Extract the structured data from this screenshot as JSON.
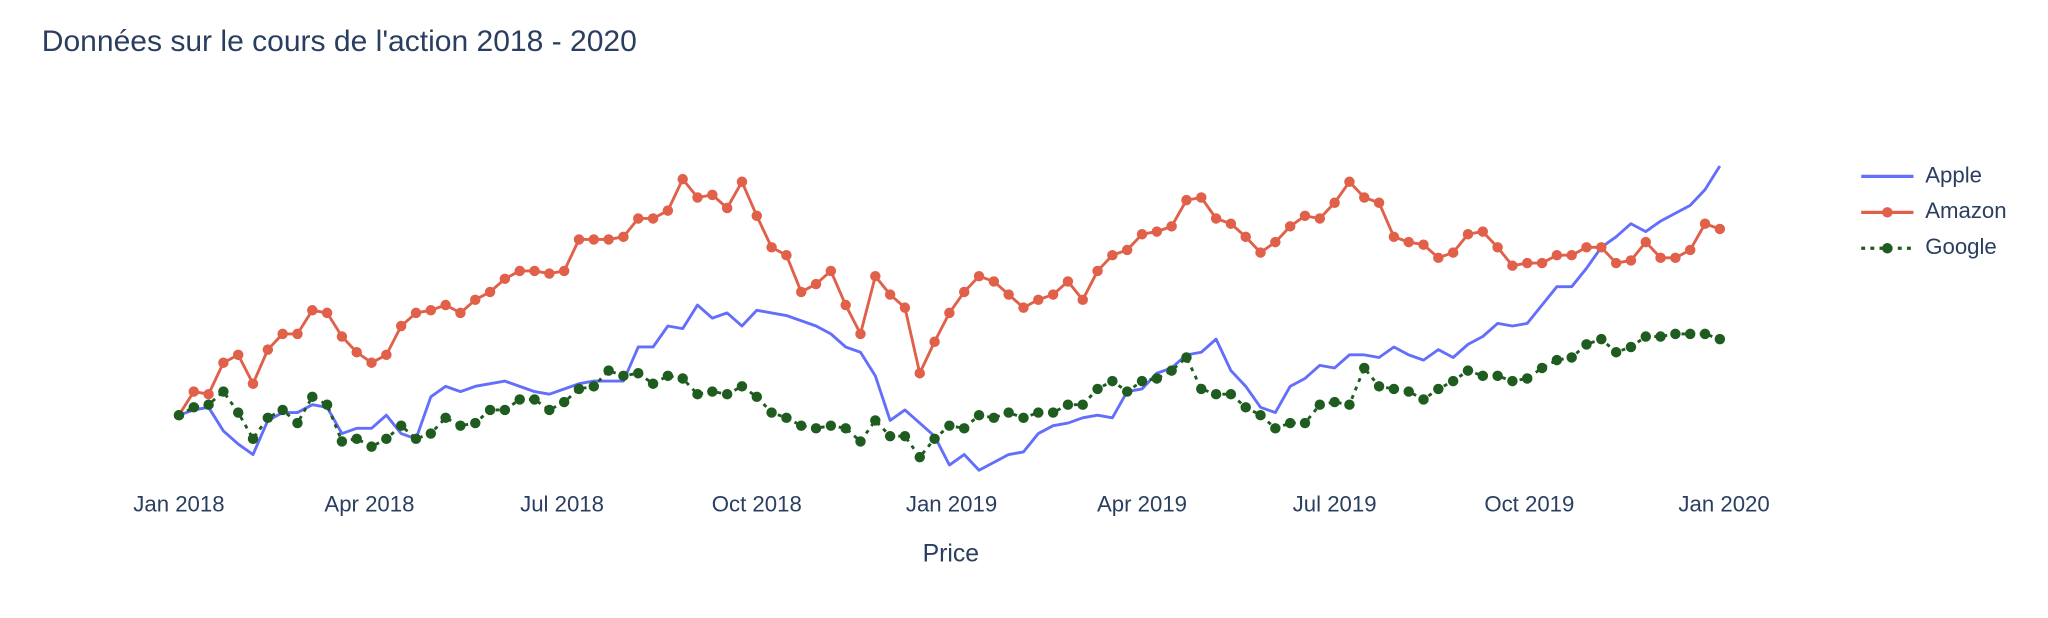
{
  "chart_data": {
    "type": "line",
    "title": "Données sur le cours de l'action 2018 - 2020",
    "x_label": "Price",
    "x": [
      "2018-01-01",
      "2018-01-08",
      "2018-01-15",
      "2018-01-22",
      "2018-01-29",
      "2018-02-05",
      "2018-02-12",
      "2018-02-19",
      "2018-02-26",
      "2018-03-05",
      "2018-03-12",
      "2018-03-19",
      "2018-03-26",
      "2018-04-02",
      "2018-04-09",
      "2018-04-16",
      "2018-04-23",
      "2018-04-30",
      "2018-05-07",
      "2018-05-14",
      "2018-05-21",
      "2018-05-28",
      "2018-06-04",
      "2018-06-11",
      "2018-06-18",
      "2018-06-25",
      "2018-07-02",
      "2018-07-09",
      "2018-07-16",
      "2018-07-23",
      "2018-07-30",
      "2018-08-06",
      "2018-08-13",
      "2018-08-20",
      "2018-08-27",
      "2018-09-03",
      "2018-09-10",
      "2018-09-17",
      "2018-09-24",
      "2018-10-01",
      "2018-10-08",
      "2018-10-15",
      "2018-10-22",
      "2018-10-29",
      "2018-11-05",
      "2018-11-12",
      "2018-11-19",
      "2018-11-26",
      "2018-12-03",
      "2018-12-10",
      "2018-12-17",
      "2018-12-24",
      "2018-12-31",
      "2019-01-07",
      "2019-01-14",
      "2019-01-21",
      "2019-01-28",
      "2019-02-04",
      "2019-02-11",
      "2019-02-18",
      "2019-02-25",
      "2019-03-04",
      "2019-03-11",
      "2019-03-18",
      "2019-03-25",
      "2019-04-01",
      "2019-04-08",
      "2019-04-15",
      "2019-04-22",
      "2019-04-29",
      "2019-05-06",
      "2019-05-13",
      "2019-05-20",
      "2019-05-27",
      "2019-06-03",
      "2019-06-10",
      "2019-06-17",
      "2019-06-24",
      "2019-07-01",
      "2019-07-08",
      "2019-07-15",
      "2019-07-22",
      "2019-07-29",
      "2019-08-05",
      "2019-08-12",
      "2019-08-19",
      "2019-08-26",
      "2019-09-02",
      "2019-09-09",
      "2019-09-16",
      "2019-09-23",
      "2019-09-30",
      "2019-10-07",
      "2019-10-14",
      "2019-10-21",
      "2019-10-28",
      "2019-11-04",
      "2019-11-11",
      "2019-11-18",
      "2019-11-25",
      "2019-12-02",
      "2019-12-09",
      "2019-12-16",
      "2019-12-23",
      "2019-12-30"
    ],
    "series": [
      {
        "name": "Apple",
        "color": "#636efa",
        "dash": "solid",
        "markers": false,
        "values": [
          1.0,
          1.02,
          1.03,
          0.94,
          0.89,
          0.85,
          0.98,
          1.01,
          1.01,
          1.04,
          1.03,
          0.93,
          0.95,
          0.95,
          1.0,
          0.93,
          0.91,
          1.07,
          1.11,
          1.09,
          1.11,
          1.12,
          1.13,
          1.11,
          1.09,
          1.08,
          1.1,
          1.12,
          1.13,
          1.13,
          1.13,
          1.26,
          1.26,
          1.34,
          1.33,
          1.42,
          1.37,
          1.39,
          1.34,
          1.4,
          1.39,
          1.38,
          1.36,
          1.34,
          1.31,
          1.26,
          1.24,
          1.15,
          0.98,
          1.02,
          0.97,
          0.92,
          0.81,
          0.85,
          0.79,
          0.82,
          0.85,
          0.86,
          0.93,
          0.96,
          0.97,
          0.99,
          1.0,
          0.99,
          1.09,
          1.1,
          1.16,
          1.18,
          1.23,
          1.24,
          1.29,
          1.17,
          1.11,
          1.03,
          1.01,
          1.11,
          1.14,
          1.19,
          1.18,
          1.23,
          1.23,
          1.22,
          1.26,
          1.23,
          1.21,
          1.25,
          1.22,
          1.27,
          1.3,
          1.35,
          1.34,
          1.35,
          1.42,
          1.49,
          1.49,
          1.56,
          1.64,
          1.68,
          1.73,
          1.7,
          1.74,
          1.77,
          1.8,
          1.86,
          1.95
        ]
      },
      {
        "name": "Amazon",
        "color": "#e0604a",
        "dash": "solid",
        "markers": true,
        "values": [
          1.0,
          1.09,
          1.08,
          1.2,
          1.23,
          1.12,
          1.25,
          1.31,
          1.31,
          1.4,
          1.39,
          1.3,
          1.24,
          1.2,
          1.23,
          1.34,
          1.39,
          1.4,
          1.42,
          1.39,
          1.44,
          1.47,
          1.52,
          1.55,
          1.55,
          1.54,
          1.55,
          1.67,
          1.67,
          1.67,
          1.68,
          1.75,
          1.75,
          1.78,
          1.9,
          1.83,
          1.84,
          1.79,
          1.89,
          1.76,
          1.64,
          1.61,
          1.47,
          1.5,
          1.55,
          1.42,
          1.31,
          1.53,
          1.46,
          1.41,
          1.16,
          1.28,
          1.39,
          1.47,
          1.53,
          1.51,
          1.46,
          1.41,
          1.44,
          1.46,
          1.51,
          1.44,
          1.55,
          1.61,
          1.63,
          1.69,
          1.7,
          1.72,
          1.82,
          1.83,
          1.75,
          1.73,
          1.68,
          1.62,
          1.66,
          1.72,
          1.76,
          1.75,
          1.81,
          1.89,
          1.83,
          1.81,
          1.68,
          1.66,
          1.65,
          1.6,
          1.62,
          1.69,
          1.7,
          1.64,
          1.57,
          1.58,
          1.58,
          1.61,
          1.61,
          1.64,
          1.64,
          1.58,
          1.59,
          1.66,
          1.6,
          1.6,
          1.63,
          1.73,
          1.71
        ]
      },
      {
        "name": "Google",
        "color": "#1f5c1f",
        "dash": "dot",
        "markers": true,
        "values": [
          1.0,
          1.03,
          1.04,
          1.09,
          1.01,
          0.91,
          0.99,
          1.02,
          0.97,
          1.07,
          1.04,
          0.9,
          0.91,
          0.88,
          0.91,
          0.96,
          0.91,
          0.93,
          0.99,
          0.96,
          0.97,
          1.02,
          1.02,
          1.06,
          1.06,
          1.02,
          1.05,
          1.1,
          1.11,
          1.17,
          1.15,
          1.16,
          1.12,
          1.15,
          1.14,
          1.08,
          1.09,
          1.08,
          1.11,
          1.07,
          1.01,
          0.99,
          0.96,
          0.95,
          0.96,
          0.95,
          0.9,
          0.98,
          0.92,
          0.92,
          0.84,
          0.91,
          0.96,
          0.95,
          1.0,
          0.99,
          1.01,
          0.99,
          1.01,
          1.01,
          1.04,
          1.04,
          1.1,
          1.13,
          1.09,
          1.13,
          1.14,
          1.17,
          1.22,
          1.1,
          1.08,
          1.08,
          1.03,
          1.0,
          0.95,
          0.97,
          0.97,
          1.04,
          1.05,
          1.04,
          1.18,
          1.11,
          1.1,
          1.09,
          1.06,
          1.1,
          1.13,
          1.17,
          1.15,
          1.15,
          1.13,
          1.14,
          1.18,
          1.21,
          1.22,
          1.27,
          1.29,
          1.24,
          1.26,
          1.3,
          1.3,
          1.31,
          1.31,
          1.31,
          1.29
        ]
      }
    ],
    "xlim": [
      "2018-01-01",
      "2020-01-01"
    ],
    "xticks": [
      {
        "value": "2018-01-01",
        "label": "Jan 2018"
      },
      {
        "value": "2018-04-01",
        "label": "Apr 2018"
      },
      {
        "value": "2018-07-01",
        "label": "Jul 2018"
      },
      {
        "value": "2018-10-01",
        "label": "Oct 2018"
      },
      {
        "value": "2019-01-01",
        "label": "Jan 2019"
      },
      {
        "value": "2019-04-01",
        "label": "Apr 2019"
      },
      {
        "value": "2019-07-01",
        "label": "Jul 2019"
      },
      {
        "value": "2019-10-01",
        "label": "Oct 2019"
      },
      {
        "value": "2020-01-01",
        "label": "Jan 2020"
      }
    ],
    "ylim": [
      0.75,
      2.0
    ],
    "grid": false,
    "legend": "right"
  }
}
